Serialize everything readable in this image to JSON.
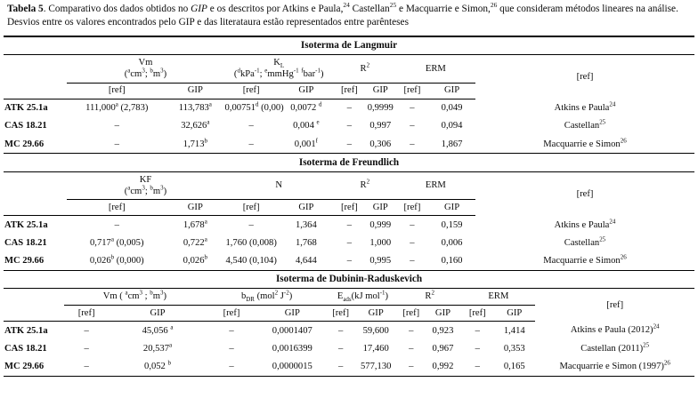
{
  "caption": {
    "segments": [
      {
        "text": "Tabela 5",
        "bold": true
      },
      {
        "text": ". Comparativo dos dados obtidos no "
      },
      {
        "text": "GIP",
        "italic": true
      },
      {
        "text": " e os descritos por Atkins e Paula,"
      },
      {
        "text": "24",
        "sup": true
      },
      {
        "text": " Castellan"
      },
      {
        "text": "25",
        "sup": true
      },
      {
        "text": " e Macquarrie e Simon,"
      },
      {
        "text": "26",
        "sup": true
      },
      {
        "text": " que consideram métodos lineares na análise. Desvios entre os valores encontrados pelo GIP e das literataura estão representados entre parênteses"
      }
    ]
  },
  "sections": [
    {
      "id": "langmuir",
      "title": "Isoterma de Langmuir",
      "groups": [
        {
          "label": "Vm",
          "unit": "(^{a}cm^{3}; ^{b}m^{3})"
        },
        {
          "label": "K_{L}",
          "unit": "(^{d}kPa^{-1}; ^{e}mmHg^{-1} ^{f}bar^{-1})"
        },
        {
          "label": "R^{2}"
        },
        {
          "label": "ERM"
        }
      ],
      "subheaders": [
        "[ref]",
        "GIP",
        "[ref]",
        "GIP",
        "[ref]",
        "GIP",
        "[ref]",
        "GIP"
      ],
      "ref_header": "[ref]",
      "rows": [
        {
          "label": "ATK 25.1a",
          "cells": [
            "111,000^{a} (2,783)",
            "113,783^{a}",
            "0,00751^{d} (0,00)",
            "0,0072 ^{d}",
            "–",
            "0,9999",
            "–",
            "0,049"
          ],
          "ref": "Atkins e Paula^{24}"
        },
        {
          "label": "CAS 18.21",
          "cells": [
            "–",
            "32,626^{a}",
            "–",
            "0,004 ^{e}",
            "–",
            "0,997",
            "–",
            "0,094"
          ],
          "ref": "Castellan^{25}"
        },
        {
          "label": "MC 29.66",
          "cells": [
            "–",
            "1,713^{b}",
            "–",
            "0,001^{f}",
            "–",
            "0,306",
            "–",
            "1,867"
          ],
          "ref": "Macquarrie e Simon^{26}"
        }
      ]
    },
    {
      "id": "freundlich",
      "title": "Isoterma de Freundlich",
      "groups": [
        {
          "label": "KF",
          "unit": "(^{a}cm^{3}; ^{b}m^{3})"
        },
        {
          "label": "N"
        },
        {
          "label": "R^{2}"
        },
        {
          "label": "ERM"
        }
      ],
      "subheaders": [
        "[ref]",
        "GIP",
        "[ref]",
        "GIP",
        "[ref]",
        "GIP",
        "[ref]",
        "GIP"
      ],
      "ref_header": "[ref]",
      "rows": [
        {
          "label": "ATK 25.1a",
          "cells": [
            "–",
            "1,678^{a}",
            "–",
            "1,364",
            "–",
            "0,999",
            "–",
            "0,159"
          ],
          "ref": "Atkins e Paula^{24}"
        },
        {
          "label": "CAS 18.21",
          "cells": [
            "0,717^{a} (0,005)",
            "0,722^{a}",
            "1,760 (0,008)",
            "1,768",
            "–",
            "1,000",
            "–",
            "0,006"
          ],
          "ref": "Castellan^{25}"
        },
        {
          "label": "MC 29.66",
          "cells": [
            "0,026^{b} (0,000)",
            "0,026^{b}",
            "4,540 (0,104)",
            "4,644",
            "–",
            "0,995",
            "–",
            "0,160"
          ],
          "ref": "Macquarrie e Simon^{26}"
        }
      ]
    },
    {
      "id": "dubinin",
      "title": "Isoterma de Dubinin-Raduskevich",
      "groups": [
        {
          "label": "Vm ( ^{a}cm^{3} ; ^{b}m^{3})"
        },
        {
          "label": "b_{DR} (mol^{2} J^{-2})"
        },
        {
          "label": "E_{ads}(kJ mol^{-1})"
        },
        {
          "label": "R^{2}"
        },
        {
          "label": "ERM"
        }
      ],
      "subheaders": [
        "[ref]",
        "GIP",
        "[ref]",
        "GIP",
        "[ref]",
        "GIP",
        "[ref]",
        "GIP",
        "[ref]",
        "GIP"
      ],
      "ref_header": "[ref]",
      "rows": [
        {
          "label": "ATK 25.1a",
          "cells": [
            "–",
            "45,056 ^{a}",
            "–",
            "0,0001407",
            "–",
            "59,600",
            "–",
            "0,923",
            "–",
            "1,414"
          ],
          "ref": "Atkins e Paula (2012)^{24}"
        },
        {
          "label": "CAS 18.21",
          "cells": [
            "–",
            "20,537^{a}",
            "–",
            "0,0016399",
            "–",
            "17,460",
            "–",
            "0,967",
            "–",
            "0,353"
          ],
          "ref": "Castellan (2011)^{25}"
        },
        {
          "label": "MC 29.66",
          "cells": [
            "–",
            "0,052 ^{b}",
            "–",
            "0,0000015",
            "–",
            "577,130",
            "–",
            "0,992",
            "–",
            "0,165"
          ],
          "ref": "Macquarrie e Simon (1997)^{26}"
        }
      ]
    }
  ]
}
